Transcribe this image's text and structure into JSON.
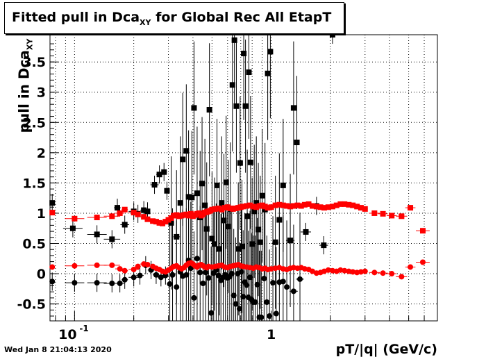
{
  "title": {
    "main": "Fitted pull in Dca",
    "sub": "XY",
    "rest": " for Global Rec All EtapT"
  },
  "datestamp": "Wed Jan  8 21:04:13 2020",
  "chart_data": {
    "type": "scatter",
    "title": "Fitted pull in Dca_XY for Global Rec All EtapT",
    "xlabel": "pT/|q| (GeV/c)",
    "ylabel": "pull in Dca_XY",
    "xscale": "log",
    "xlim": [
      0.075,
      7.0
    ],
    "ylim": [
      -0.78,
      3.95
    ],
    "grid": true,
    "x_tick_labels": [
      "10^-1",
      "1"
    ],
    "y_tick_labels": [
      "-0.5",
      "0",
      "0.5",
      "1",
      "1.5",
      "2",
      "2.5",
      "3",
      "3.5"
    ],
    "y_ticks": [
      -0.5,
      0,
      0.5,
      1,
      1.5,
      2,
      2.5,
      3,
      3.5
    ],
    "series": [
      {
        "color": "#000000",
        "marker": "square",
        "points": [
          [
            0.077,
            1.17
          ],
          [
            0.098,
            0.75
          ],
          [
            0.13,
            0.65
          ],
          [
            0.155,
            0.57
          ],
          [
            0.165,
            1.09
          ],
          [
            0.18,
            0.81
          ],
          [
            0.2,
            1.03
          ],
          [
            0.21,
            0.99
          ],
          [
            0.225,
            1.05
          ],
          [
            0.235,
            1.03
          ],
          [
            0.255,
            1.47
          ],
          [
            0.27,
            1.64
          ],
          [
            0.285,
            1.68
          ],
          [
            0.295,
            1.37
          ],
          [
            0.31,
            0.84
          ],
          [
            0.33,
            0.61
          ],
          [
            0.345,
            1.17
          ],
          [
            0.355,
            1.89
          ],
          [
            0.37,
            2.03
          ],
          [
            0.38,
            1.27
          ],
          [
            0.395,
            1.26
          ],
          [
            0.405,
            2.74
          ],
          [
            0.42,
            1.33
          ],
          [
            0.435,
            0.93
          ],
          [
            0.445,
            1.49
          ],
          [
            0.46,
            1.13
          ],
          [
            0.47,
            0.74
          ],
          [
            0.485,
            2.71
          ],
          [
            0.5,
            0.58
          ],
          [
            0.515,
            0.49
          ],
          [
            0.53,
            1.46
          ],
          [
            0.545,
            0.41
          ],
          [
            0.56,
            1.17
          ],
          [
            0.575,
            0.88
          ],
          [
            0.59,
            1.51
          ],
          [
            0.605,
            0.78
          ],
          [
            0.62,
            1.07
          ],
          [
            0.635,
            3.12
          ],
          [
            0.65,
            3.86
          ],
          [
            0.665,
            2.77
          ],
          [
            0.68,
            0.41
          ],
          [
            0.695,
            1.83
          ],
          [
            0.71,
            0.45
          ],
          [
            0.725,
            3.64
          ],
          [
            0.74,
            2.77
          ],
          [
            0.755,
            0.95
          ],
          [
            0.77,
            3.33
          ],
          [
            0.785,
            1.84
          ],
          [
            0.8,
            0.49
          ],
          [
            0.82,
            1.03
          ],
          [
            0.84,
            1.17
          ],
          [
            0.86,
            0.73
          ],
          [
            0.88,
            0.52
          ],
          [
            0.9,
            1.29
          ],
          [
            0.93,
            1.06
          ],
          [
            0.96,
            3.31
          ],
          [
            0.99,
            3.67
          ],
          [
            1.05,
            0.52
          ],
          [
            1.1,
            0.89
          ],
          [
            1.15,
            1.46
          ],
          [
            1.25,
            0.55
          ],
          [
            1.3,
            2.74
          ],
          [
            1.35,
            2.17
          ],
          [
            1.5,
            0.69
          ],
          [
            1.7,
            1.12
          ],
          [
            1.85,
            0.47
          ],
          [
            2.05,
            3.95
          ]
        ]
      },
      {
        "color": "#000000",
        "marker": "circle",
        "points": [
          [
            0.077,
            -0.13
          ],
          [
            0.1,
            -0.15
          ],
          [
            0.13,
            -0.15
          ],
          [
            0.155,
            -0.16
          ],
          [
            0.17,
            -0.16
          ],
          [
            0.18,
            -0.1
          ],
          [
            0.2,
            -0.06
          ],
          [
            0.215,
            -0.03
          ],
          [
            0.23,
            0.14
          ],
          [
            0.245,
            0.06
          ],
          [
            0.26,
            -0.02
          ],
          [
            0.275,
            -0.06
          ],
          [
            0.29,
            -0.03
          ],
          [
            0.305,
            -0.17
          ],
          [
            0.315,
            -0.02
          ],
          [
            0.33,
            -0.22
          ],
          [
            0.345,
            0.03
          ],
          [
            0.355,
            -0.04
          ],
          [
            0.37,
            -0.02
          ],
          [
            0.38,
            0.22
          ],
          [
            0.39,
            0.09
          ],
          [
            0.405,
            -0.4
          ],
          [
            0.42,
            0.25
          ],
          [
            0.435,
            0.02
          ],
          [
            0.45,
            -0.16
          ],
          [
            0.465,
            0.02
          ],
          [
            0.48,
            -0.07
          ],
          [
            0.495,
            -0.65
          ],
          [
            0.51,
            0.01
          ],
          [
            0.525,
            0.06
          ],
          [
            0.54,
            -0.03
          ],
          [
            0.555,
            -0.11
          ],
          [
            0.57,
            -0.06
          ],
          [
            0.585,
            -0.02
          ],
          [
            0.6,
            -0.07
          ],
          [
            0.615,
            -0.05
          ],
          [
            0.63,
            0.0
          ],
          [
            0.645,
            -0.36
          ],
          [
            0.66,
            -0.5
          ],
          [
            0.675,
            0.0
          ],
          [
            0.69,
            -0.58
          ],
          [
            0.705,
            0.03
          ],
          [
            0.72,
            -0.38
          ],
          [
            0.735,
            -0.14
          ],
          [
            0.75,
            -0.19
          ],
          [
            0.765,
            -0.39
          ],
          [
            0.78,
            -0.06
          ],
          [
            0.795,
            -0.43
          ],
          [
            0.81,
            -0.47
          ],
          [
            0.83,
            -0.47
          ],
          [
            0.85,
            -0.18
          ],
          [
            0.87,
            -0.72
          ],
          [
            0.89,
            -0.72
          ],
          [
            0.92,
            -0.08
          ],
          [
            0.95,
            -0.47
          ],
          [
            0.98,
            -0.7
          ],
          [
            1.02,
            -0.15
          ],
          [
            1.06,
            -0.66
          ],
          [
            1.1,
            -0.14
          ],
          [
            1.15,
            -0.13
          ],
          [
            1.2,
            -0.22
          ],
          [
            1.3,
            -0.29
          ],
          [
            1.4,
            -0.09
          ]
        ]
      },
      {
        "color": "#ff0000",
        "marker": "square",
        "points": [
          [
            0.077,
            1.01
          ],
          [
            0.1,
            0.91
          ],
          [
            0.13,
            0.93
          ],
          [
            0.155,
            0.95
          ],
          [
            0.17,
            1.0
          ],
          [
            0.18,
            1.06
          ],
          [
            0.2,
            1.01
          ],
          [
            0.21,
            0.98
          ],
          [
            0.225,
            0.94
          ],
          [
            0.235,
            0.9
          ],
          [
            0.25,
            0.87
          ],
          [
            0.26,
            0.86
          ],
          [
            0.27,
            0.84
          ],
          [
            0.28,
            0.83
          ],
          [
            0.29,
            0.86
          ],
          [
            0.3,
            0.89
          ],
          [
            0.31,
            0.92
          ],
          [
            0.32,
            0.96
          ],
          [
            0.33,
            0.97
          ],
          [
            0.34,
            0.95
          ],
          [
            0.35,
            0.96
          ],
          [
            0.36,
            0.97
          ],
          [
            0.37,
            0.98
          ],
          [
            0.38,
            0.96
          ],
          [
            0.39,
            0.99
          ],
          [
            0.4,
            0.95
          ],
          [
            0.41,
            0.97
          ],
          [
            0.42,
            0.99
          ],
          [
            0.43,
            1.0
          ],
          [
            0.44,
            0.96
          ],
          [
            0.45,
            0.98
          ],
          [
            0.46,
            1.01
          ],
          [
            0.47,
            1.02
          ],
          [
            0.48,
            1.03
          ],
          [
            0.49,
            1.04
          ],
          [
            0.5,
            1.06
          ],
          [
            0.52,
            1.07
          ],
          [
            0.54,
            1.08
          ],
          [
            0.56,
            1.06
          ],
          [
            0.58,
            1.09
          ],
          [
            0.6,
            1.1
          ],
          [
            0.62,
            1.08
          ],
          [
            0.64,
            1.07
          ],
          [
            0.66,
            1.08
          ],
          [
            0.68,
            1.09
          ],
          [
            0.7,
            1.1
          ],
          [
            0.72,
            1.11
          ],
          [
            0.75,
            1.12
          ],
          [
            0.78,
            1.13
          ],
          [
            0.81,
            1.11
          ],
          [
            0.84,
            1.1
          ],
          [
            0.87,
            1.12
          ],
          [
            0.9,
            1.13
          ],
          [
            0.93,
            1.11
          ],
          [
            0.96,
            1.09
          ],
          [
            1.0,
            1.1
          ],
          [
            1.05,
            1.13
          ],
          [
            1.1,
            1.14
          ],
          [
            1.15,
            1.13
          ],
          [
            1.2,
            1.12
          ],
          [
            1.25,
            1.11
          ],
          [
            1.3,
            1.12
          ],
          [
            1.36,
            1.13
          ],
          [
            1.42,
            1.12
          ],
          [
            1.48,
            1.14
          ],
          [
            1.55,
            1.15
          ],
          [
            1.62,
            1.12
          ],
          [
            1.7,
            1.11
          ],
          [
            1.78,
            1.1
          ],
          [
            1.86,
            1.09
          ],
          [
            1.95,
            1.1
          ],
          [
            2.05,
            1.11
          ],
          [
            2.15,
            1.13
          ],
          [
            2.25,
            1.15
          ],
          [
            2.36,
            1.15
          ],
          [
            2.48,
            1.14
          ],
          [
            2.6,
            1.13
          ],
          [
            2.73,
            1.11
          ],
          [
            2.86,
            1.09
          ],
          [
            3.0,
            1.07
          ],
          [
            3.35,
            1.0
          ],
          [
            3.7,
            0.99
          ],
          [
            4.1,
            0.96
          ],
          [
            4.6,
            0.95
          ],
          [
            5.1,
            1.09
          ],
          [
            5.9,
            0.71
          ]
        ]
      },
      {
        "color": "#ff0000",
        "marker": "circle",
        "points": [
          [
            0.077,
            0.11
          ],
          [
            0.1,
            0.13
          ],
          [
            0.13,
            0.14
          ],
          [
            0.155,
            0.14
          ],
          [
            0.17,
            0.08
          ],
          [
            0.18,
            0.05
          ],
          [
            0.2,
            0.07
          ],
          [
            0.21,
            0.12
          ],
          [
            0.225,
            0.16
          ],
          [
            0.235,
            0.15
          ],
          [
            0.25,
            0.12
          ],
          [
            0.26,
            0.09
          ],
          [
            0.27,
            0.07
          ],
          [
            0.28,
            0.04
          ],
          [
            0.29,
            0.03
          ],
          [
            0.3,
            0.06
          ],
          [
            0.31,
            0.09
          ],
          [
            0.32,
            0.12
          ],
          [
            0.33,
            0.13
          ],
          [
            0.34,
            0.1
          ],
          [
            0.35,
            0.08
          ],
          [
            0.36,
            0.1
          ],
          [
            0.37,
            0.14
          ],
          [
            0.38,
            0.17
          ],
          [
            0.39,
            0.18
          ],
          [
            0.4,
            0.16
          ],
          [
            0.41,
            0.13
          ],
          [
            0.42,
            0.11
          ],
          [
            0.43,
            0.14
          ],
          [
            0.44,
            0.15
          ],
          [
            0.45,
            0.13
          ],
          [
            0.46,
            0.11
          ],
          [
            0.47,
            0.1
          ],
          [
            0.48,
            0.12
          ],
          [
            0.5,
            0.11
          ],
          [
            0.52,
            0.12
          ],
          [
            0.54,
            0.13
          ],
          [
            0.56,
            0.14
          ],
          [
            0.58,
            0.11
          ],
          [
            0.6,
            0.1
          ],
          [
            0.62,
            0.12
          ],
          [
            0.64,
            0.13
          ],
          [
            0.66,
            0.14
          ],
          [
            0.68,
            0.15
          ],
          [
            0.7,
            0.13
          ],
          [
            0.72,
            0.12
          ],
          [
            0.75,
            0.11
          ],
          [
            0.78,
            0.1
          ],
          [
            0.81,
            0.09
          ],
          [
            0.84,
            0.11
          ],
          [
            0.87,
            0.1
          ],
          [
            0.9,
            0.08
          ],
          [
            0.93,
            0.09
          ],
          [
            0.96,
            0.07
          ],
          [
            1.0,
            0.08
          ],
          [
            1.05,
            0.09
          ],
          [
            1.1,
            0.1
          ],
          [
            1.15,
            0.08
          ],
          [
            1.2,
            0.07
          ],
          [
            1.25,
            0.09
          ],
          [
            1.3,
            0.1
          ],
          [
            1.36,
            0.09
          ],
          [
            1.42,
            0.1
          ],
          [
            1.48,
            0.08
          ],
          [
            1.55,
            0.07
          ],
          [
            1.62,
            0.04
          ],
          [
            1.7,
            0.01
          ],
          [
            1.78,
            0.02
          ],
          [
            1.86,
            0.04
          ],
          [
            1.95,
            0.06
          ],
          [
            2.05,
            0.05
          ],
          [
            2.15,
            0.04
          ],
          [
            2.25,
            0.06
          ],
          [
            2.36,
            0.05
          ],
          [
            2.48,
            0.04
          ],
          [
            2.6,
            0.03
          ],
          [
            2.73,
            0.02
          ],
          [
            2.86,
            0.03
          ],
          [
            3.0,
            0.04
          ],
          [
            3.35,
            0.02
          ],
          [
            3.7,
            0.01
          ],
          [
            4.1,
            0.0
          ],
          [
            4.6,
            -0.05
          ],
          [
            5.1,
            0.11
          ],
          [
            5.9,
            0.19
          ]
        ]
      }
    ]
  }
}
